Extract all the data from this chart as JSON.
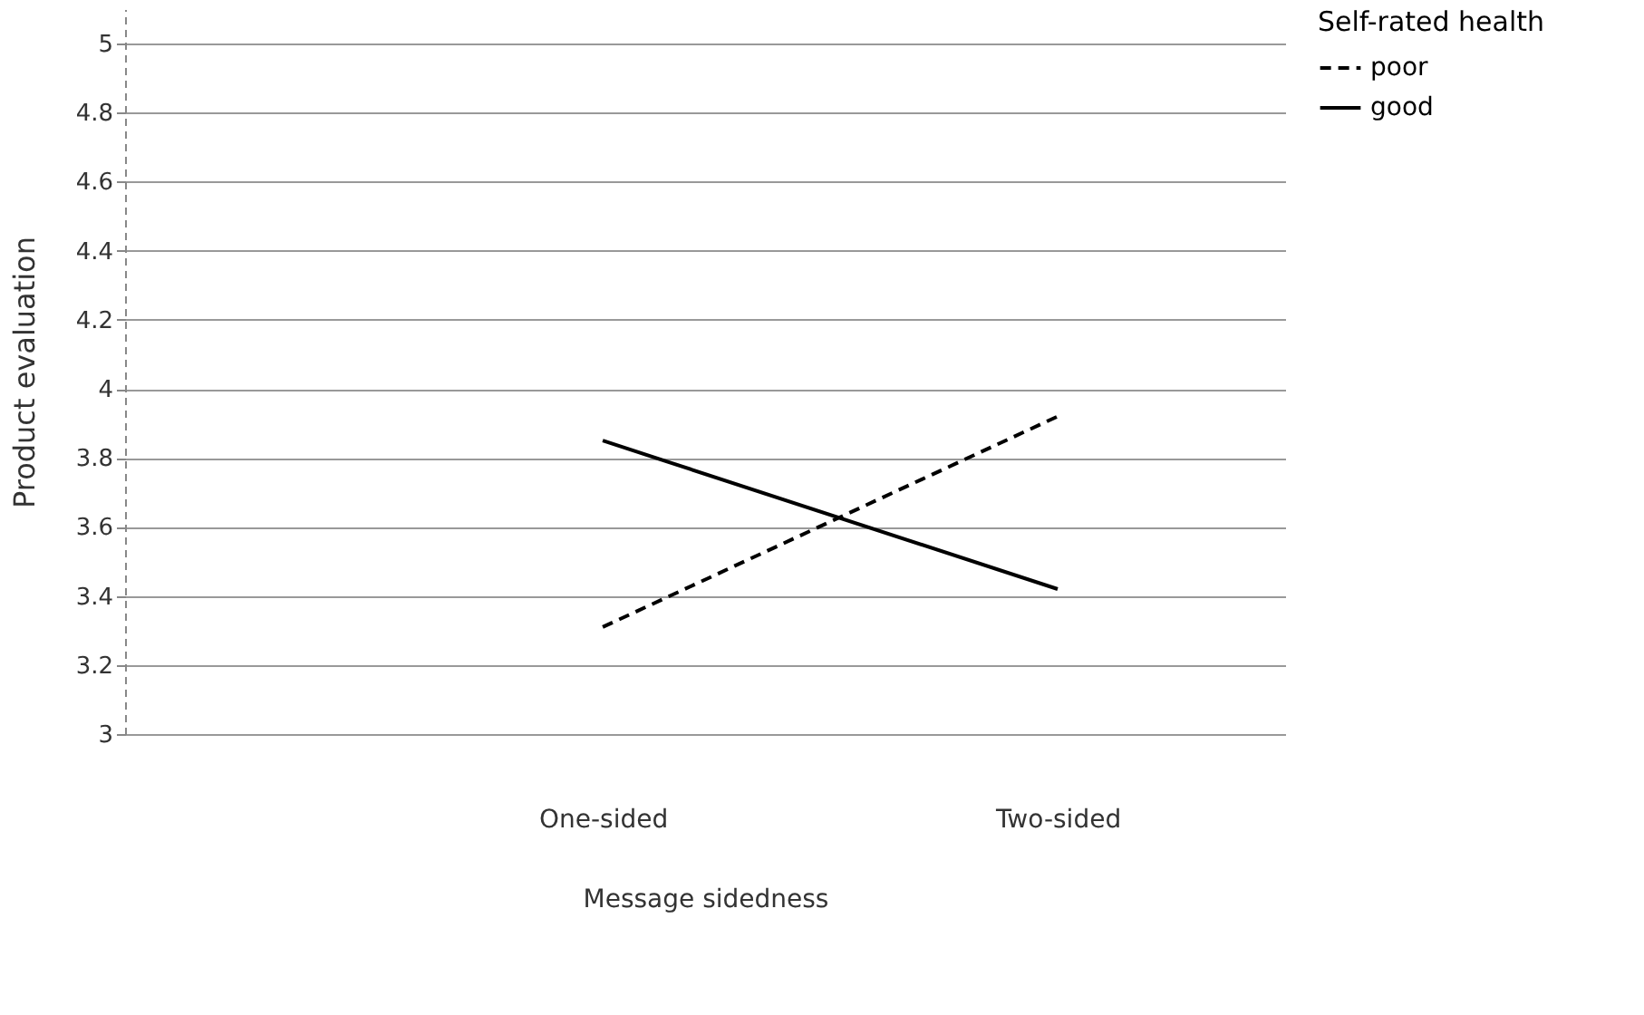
{
  "chart_data": {
    "type": "line",
    "xlabel": "Message sidedness",
    "ylabel": "Product evaluation",
    "legend_title": "Self-rated health",
    "categories": [
      "One-sided",
      "Two-sided"
    ],
    "series": [
      {
        "name": "poor",
        "color": "#000000",
        "line_style": "dashed",
        "values": [
          3.31,
          3.92
        ]
      },
      {
        "name": "good",
        "color": "#000000",
        "line_style": "solid",
        "values": [
          3.85,
          3.42
        ]
      }
    ],
    "ylim": [
      3,
      5.1
    ],
    "yticks": [
      3,
      3.2,
      3.4,
      3.6,
      3.8,
      4,
      4.2,
      4.4,
      4.6,
      4.8,
      5
    ],
    "grid": "y",
    "legend": "right",
    "marker": "none"
  }
}
